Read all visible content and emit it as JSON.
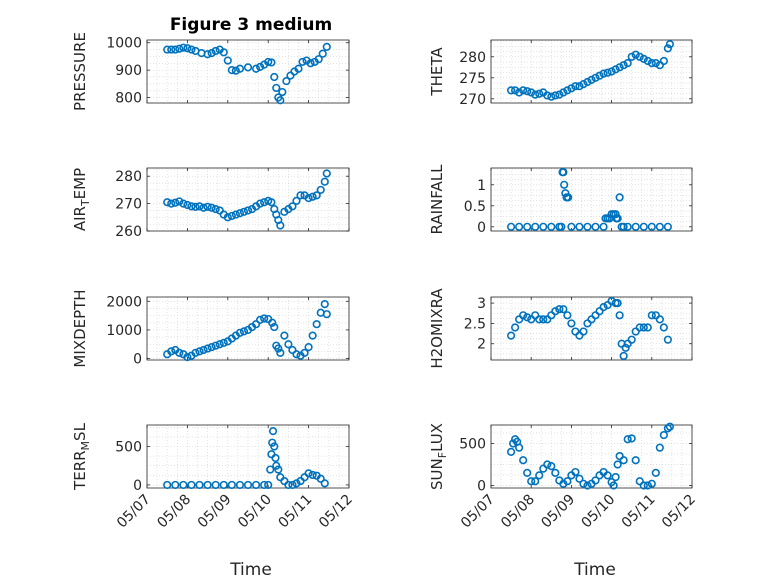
{
  "title": "Figure 3 medium",
  "colors": {
    "marker": "#0072BD",
    "axes": "#262626",
    "grid": "#d0d0d0"
  },
  "x_ticks": [
    "05/07",
    "05/08",
    "05/09",
    "05/10",
    "05/11",
    "05/12"
  ],
  "x_label": "Time",
  "chart_data": [
    {
      "type": "scatter",
      "ylabel": "PRESSURE",
      "ylim": [
        780,
        1010
      ],
      "yticks": [
        "1000",
        "900",
        "800"
      ],
      "ytickvals": [
        1000,
        900,
        800
      ],
      "grid": true,
      "x": [
        7.5,
        7.6,
        7.7,
        7.8,
        7.9,
        8.0,
        8.1,
        8.2,
        8.35,
        8.5,
        8.6,
        8.7,
        8.8,
        8.9,
        9.0,
        9.1,
        9.2,
        9.3,
        9.5,
        9.7,
        9.8,
        9.9,
        10.0,
        10.08,
        10.15,
        10.2,
        10.25,
        10.3,
        10.35,
        10.45,
        10.55,
        10.65,
        10.75,
        10.85,
        10.95,
        11.05,
        11.15,
        11.25,
        11.35,
        11.45
      ],
      "y": [
        975,
        975,
        975,
        978,
        982,
        980,
        975,
        970,
        962,
        958,
        962,
        970,
        975,
        965,
        935,
        900,
        898,
        905,
        910,
        905,
        912,
        920,
        930,
        928,
        875,
        835,
        800,
        790,
        820,
        860,
        880,
        895,
        905,
        930,
        935,
        925,
        930,
        940,
        960,
        985
      ]
    },
    {
      "type": "scatter",
      "ylabel": "THETA",
      "ylim": [
        269,
        284
      ],
      "yticks": [
        "280",
        "275",
        "270"
      ],
      "ytickvals": [
        280,
        275,
        270
      ],
      "grid": true,
      "x": [
        7.5,
        7.6,
        7.7,
        7.8,
        7.9,
        8.0,
        8.1,
        8.2,
        8.3,
        8.4,
        8.5,
        8.6,
        8.7,
        8.8,
        8.9,
        9.0,
        9.1,
        9.2,
        9.3,
        9.4,
        9.5,
        9.6,
        9.7,
        9.8,
        9.9,
        10.0,
        10.1,
        10.2,
        10.3,
        10.4,
        10.5,
        10.6,
        10.7,
        10.8,
        10.9,
        11.0,
        11.1,
        11.2,
        11.3,
        11.4,
        11.45
      ],
      "y": [
        272,
        272,
        271.5,
        272,
        271.8,
        271.5,
        271,
        271.2,
        271.5,
        270.8,
        270.5,
        270.8,
        271,
        271.5,
        272,
        272.5,
        273,
        273,
        273.5,
        274,
        274.5,
        275,
        275.5,
        276,
        276.2,
        276.5,
        277,
        277.5,
        278,
        278.5,
        280,
        280.5,
        280,
        279.5,
        279,
        278.5,
        278.5,
        278,
        279,
        282,
        283
      ]
    },
    {
      "type": "scatter",
      "ylabel": "AIR_TEMP",
      "ylim": [
        260,
        283
      ],
      "yticks": [
        "280",
        "270",
        "260"
      ],
      "ytickvals": [
        280,
        270,
        260
      ],
      "grid": true,
      "x": [
        7.5,
        7.6,
        7.7,
        7.8,
        7.9,
        8.0,
        8.1,
        8.2,
        8.3,
        8.4,
        8.5,
        8.6,
        8.7,
        8.8,
        8.9,
        9.0,
        9.1,
        9.2,
        9.3,
        9.4,
        9.5,
        9.6,
        9.7,
        9.8,
        9.9,
        10.0,
        10.08,
        10.15,
        10.2,
        10.25,
        10.3,
        10.4,
        10.5,
        10.6,
        10.7,
        10.8,
        10.9,
        11.0,
        11.1,
        11.2,
        11.3,
        11.4,
        11.45
      ],
      "y": [
        270.5,
        270,
        270.3,
        270.8,
        270,
        269.5,
        269,
        268.8,
        269,
        268.5,
        268.8,
        268.5,
        268,
        267.5,
        266,
        265,
        265.5,
        266,
        266.5,
        267,
        267.5,
        268,
        269,
        270,
        270.5,
        271,
        270.5,
        268,
        266,
        264,
        262,
        267,
        268,
        269,
        271,
        273,
        273,
        272,
        272.5,
        273,
        275,
        278,
        281
      ]
    },
    {
      "type": "scatter",
      "ylabel": "RAINFALL",
      "ylim": [
        -0.1,
        1.4
      ],
      "yticks": [
        "1",
        "0.5",
        "0"
      ],
      "ytickvals": [
        1,
        0.5,
        0
      ],
      "grid": true,
      "x": [
        7.5,
        7.7,
        7.9,
        8.1,
        8.3,
        8.5,
        8.7,
        8.75,
        8.78,
        8.8,
        8.82,
        8.85,
        8.88,
        8.92,
        9.0,
        9.2,
        9.4,
        9.6,
        9.8,
        9.85,
        9.9,
        9.95,
        10.0,
        10.05,
        10.1,
        10.12,
        10.15,
        10.2,
        10.25,
        10.3,
        10.4,
        10.6,
        10.8,
        11.0,
        11.2,
        11.4
      ],
      "y": [
        0,
        0,
        0,
        0,
        0,
        0,
        0,
        0,
        1.3,
        1.3,
        1.0,
        0.8,
        0.7,
        0.7,
        0,
        0,
        0,
        0,
        0,
        0.2,
        0.2,
        0.2,
        0.3,
        0.3,
        0.3,
        0.2,
        0.2,
        0.7,
        0,
        0,
        0,
        0,
        0,
        0,
        0,
        0
      ]
    },
    {
      "type": "scatter",
      "ylabel": "MIXDEPTH",
      "ylim": [
        -50,
        2150
      ],
      "yticks": [
        "2000",
        "1000",
        "0"
      ],
      "ytickvals": [
        2000,
        1000,
        0
      ],
      "grid": true,
      "x": [
        7.5,
        7.6,
        7.7,
        7.8,
        7.9,
        8.0,
        8.1,
        8.2,
        8.3,
        8.4,
        8.5,
        8.6,
        8.7,
        8.8,
        8.9,
        9.0,
        9.1,
        9.2,
        9.3,
        9.4,
        9.5,
        9.6,
        9.7,
        9.8,
        9.9,
        10.0,
        10.1,
        10.15,
        10.2,
        10.25,
        10.3,
        10.4,
        10.5,
        10.6,
        10.7,
        10.8,
        10.9,
        11.0,
        11.1,
        11.2,
        11.3,
        11.4,
        11.45
      ],
      "y": [
        150,
        250,
        300,
        200,
        150,
        50,
        100,
        200,
        250,
        300,
        350,
        400,
        450,
        500,
        550,
        600,
        700,
        800,
        900,
        950,
        1000,
        1100,
        1200,
        1350,
        1400,
        1380,
        1250,
        1100,
        450,
        350,
        200,
        800,
        500,
        300,
        150,
        100,
        200,
        400,
        800,
        1200,
        1600,
        1900,
        1550
      ]
    },
    {
      "type": "scatter",
      "ylabel": "H2OMIXRA",
      "ylim": [
        1.6,
        3.15
      ],
      "yticks": [
        "3",
        "2.5",
        "2"
      ],
      "ytickvals": [
        3,
        2.5,
        2
      ],
      "grid": true,
      "x": [
        7.5,
        7.6,
        7.7,
        7.8,
        7.9,
        8.0,
        8.1,
        8.2,
        8.3,
        8.4,
        8.5,
        8.6,
        8.7,
        8.8,
        8.9,
        9.0,
        9.1,
        9.2,
        9.3,
        9.4,
        9.5,
        9.6,
        9.7,
        9.8,
        9.9,
        10.0,
        10.1,
        10.15,
        10.2,
        10.25,
        10.3,
        10.35,
        10.4,
        10.5,
        10.6,
        10.7,
        10.8,
        10.9,
        11.0,
        11.1,
        11.2,
        11.3,
        11.4
      ],
      "y": [
        2.2,
        2.4,
        2.6,
        2.7,
        2.65,
        2.6,
        2.7,
        2.6,
        2.6,
        2.6,
        2.7,
        2.8,
        2.85,
        2.85,
        2.7,
        2.5,
        2.3,
        2.2,
        2.3,
        2.5,
        2.6,
        2.7,
        2.8,
        2.9,
        2.95,
        3.05,
        3.0,
        3.0,
        2.7,
        2.0,
        1.7,
        1.9,
        2.0,
        2.1,
        2.3,
        2.4,
        2.4,
        2.4,
        2.7,
        2.7,
        2.6,
        2.4,
        2.1
      ]
    },
    {
      "type": "scatter",
      "ylabel": "TERR_MSL",
      "ylim": [
        -40,
        780
      ],
      "yticks": [
        "500",
        "0"
      ],
      "ytickvals": [
        500,
        0
      ],
      "grid": true,
      "x": [
        7.5,
        7.7,
        7.9,
        8.1,
        8.3,
        8.5,
        8.7,
        8.9,
        9.1,
        9.3,
        9.5,
        9.7,
        9.9,
        10.0,
        10.05,
        10.08,
        10.1,
        10.12,
        10.15,
        10.18,
        10.2,
        10.25,
        10.3,
        10.4,
        10.5,
        10.6,
        10.7,
        10.8,
        10.9,
        11.0,
        11.1,
        11.2,
        11.3,
        11.4
      ],
      "y": [
        0,
        0,
        0,
        0,
        0,
        0,
        0,
        0,
        0,
        0,
        0,
        0,
        0,
        0,
        200,
        400,
        550,
        700,
        500,
        350,
        250,
        200,
        100,
        50,
        0,
        0,
        20,
        50,
        100,
        150,
        130,
        120,
        80,
        20
      ]
    },
    {
      "type": "scatter",
      "ylabel": "SUN_FLUX",
      "ylim": [
        -30,
        720
      ],
      "yticks": [
        "500",
        "0"
      ],
      "ytickvals": [
        500,
        0
      ],
      "grid": true,
      "x": [
        7.5,
        7.55,
        7.6,
        7.65,
        7.7,
        7.8,
        7.9,
        8.0,
        8.1,
        8.2,
        8.3,
        8.4,
        8.5,
        8.6,
        8.7,
        8.8,
        8.9,
        9.0,
        9.1,
        9.2,
        9.3,
        9.4,
        9.5,
        9.6,
        9.7,
        9.8,
        9.9,
        10.0,
        10.05,
        10.1,
        10.15,
        10.2,
        10.3,
        10.4,
        10.5,
        10.6,
        10.7,
        10.8,
        10.9,
        11.0,
        11.1,
        11.2,
        11.3,
        11.4,
        11.45
      ],
      "y": [
        400,
        500,
        550,
        520,
        450,
        300,
        150,
        50,
        50,
        120,
        200,
        250,
        230,
        150,
        60,
        20,
        50,
        120,
        160,
        80,
        20,
        0,
        20,
        60,
        120,
        160,
        120,
        40,
        0,
        100,
        250,
        350,
        300,
        550,
        560,
        300,
        50,
        0,
        0,
        20,
        150,
        450,
        600,
        680,
        700
      ]
    }
  ]
}
